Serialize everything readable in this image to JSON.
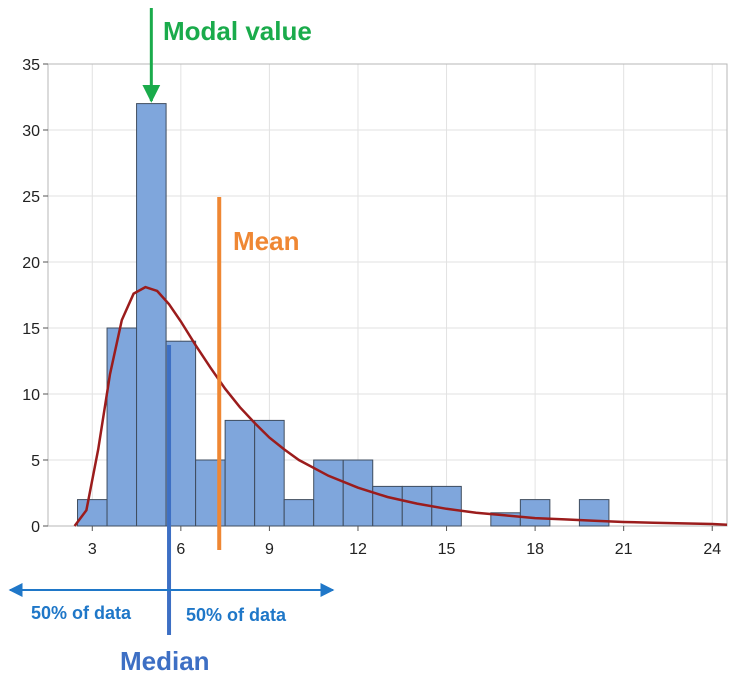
{
  "chart_data": {
    "type": "bar",
    "subtype": "histogram",
    "xlim": [
      1.5,
      24.5
    ],
    "ylim": [
      0,
      35
    ],
    "x_ticks": [
      3,
      6,
      9,
      12,
      15,
      18,
      21,
      24
    ],
    "y_ticks": [
      0,
      5,
      10,
      15,
      20,
      25,
      30,
      35
    ],
    "bin_width": 1,
    "bins": [
      {
        "start": 2.5,
        "count": 2
      },
      {
        "start": 3.5,
        "count": 15
      },
      {
        "start": 4.5,
        "count": 32
      },
      {
        "start": 5.5,
        "count": 14
      },
      {
        "start": 6.5,
        "count": 5
      },
      {
        "start": 7.5,
        "count": 8
      },
      {
        "start": 8.5,
        "count": 8
      },
      {
        "start": 9.5,
        "count": 2
      },
      {
        "start": 10.5,
        "count": 5
      },
      {
        "start": 11.5,
        "count": 5
      },
      {
        "start": 12.5,
        "count": 3
      },
      {
        "start": 13.5,
        "count": 3
      },
      {
        "start": 14.5,
        "count": 3
      },
      {
        "start": 16.5,
        "count": 1
      },
      {
        "start": 17.5,
        "count": 2
      },
      {
        "start": 19.5,
        "count": 2
      }
    ],
    "fitted_curve": {
      "x": [
        2.4,
        2.8,
        3.2,
        3.6,
        4.0,
        4.4,
        4.8,
        5.2,
        5.6,
        6.0,
        6.5,
        7.0,
        7.5,
        8.0,
        8.5,
        9.0,
        9.5,
        10.0,
        11.0,
        12.0,
        13.0,
        14.0,
        15.0,
        16.0,
        17.0,
        18.0,
        19.0,
        20.0,
        21.0,
        22.0,
        23.0,
        24.0,
        24.5
      ],
      "y": [
        0,
        1.2,
        5.8,
        11.5,
        15.6,
        17.6,
        18.1,
        17.8,
        16.8,
        15.5,
        13.7,
        12.0,
        10.4,
        9.0,
        7.8,
        6.7,
        5.8,
        5.0,
        3.8,
        2.9,
        2.2,
        1.7,
        1.3,
        1.0,
        0.8,
        0.6,
        0.5,
        0.4,
        0.3,
        0.25,
        0.2,
        0.15,
        0.1
      ],
      "color": "#9b1c1c"
    },
    "bar_color": "#7fa6dc",
    "bar_edge_color": "#3f4d5f",
    "grid": true
  },
  "annotations": {
    "mode": {
      "label": "Modal value",
      "x": 5,
      "color": "#1aab4b"
    },
    "mean": {
      "label": "Mean",
      "x": 7.3,
      "color": "#ef8733"
    },
    "median": {
      "label": "Median",
      "x": 5.6,
      "color": "#3d6fc4"
    },
    "left_split": {
      "label": "50% of data",
      "color": "#1f77c8"
    },
    "right_split": {
      "label": "50% of data",
      "color": "#1f77c8"
    }
  }
}
